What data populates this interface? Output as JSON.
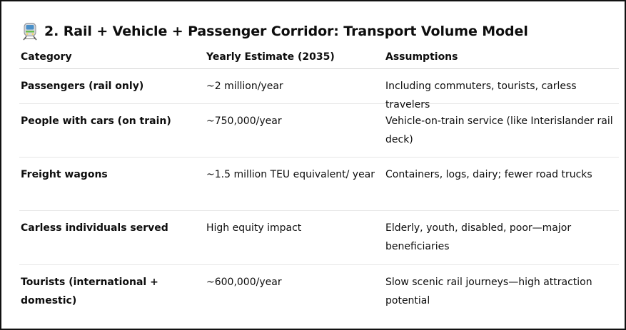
{
  "heading": {
    "icon": "train-icon",
    "text": "2. Rail + Vehicle + Passenger Corridor: Transport Volume Model"
  },
  "table": {
    "headers": [
      "Category",
      "Yearly Estimate (2035)",
      "Assumptions"
    ],
    "rows": [
      {
        "category": "Passengers (rail only)",
        "estimate": "~2 million/year",
        "assumptions": "Including commuters, tourists, carless travelers"
      },
      {
        "category": "People with cars (on train)",
        "estimate": "~750,000/year",
        "assumptions": "Vehicle-on-train service (like Interislander rail deck)"
      },
      {
        "category": "Freight wagons",
        "estimate": "~1.5 million TEU equivalent/ year",
        "assumptions": "Containers, logs, dairy; fewer road trucks"
      },
      {
        "category": "Carless individuals served",
        "estimate": "High equity impact",
        "assumptions": "Elderly, youth, disabled, poor—major beneficiaries"
      },
      {
        "category": "Tourists (international + domestic)",
        "estimate": "~600,000/year",
        "assumptions": "Slow scenic rail journeys—high attraction potential"
      }
    ]
  }
}
